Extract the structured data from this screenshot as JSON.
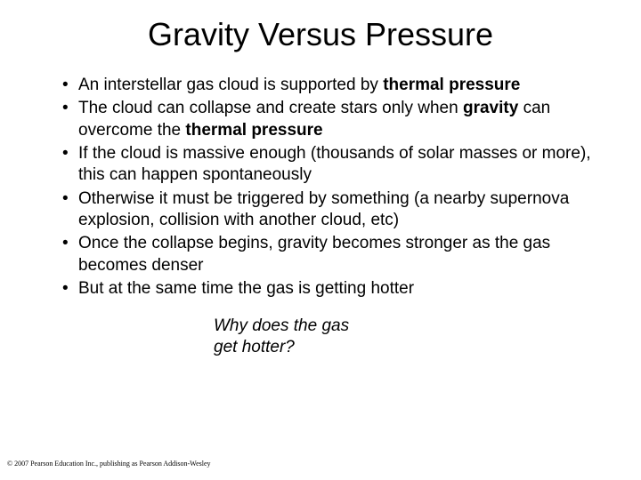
{
  "slide": {
    "title": "Gravity Versus Pressure",
    "title_fontsize": 36,
    "body_fontsize": 19,
    "background_color": "#ffffff",
    "text_color": "#000000",
    "bullets": [
      {
        "pre": "An interstellar gas cloud is supported by ",
        "bold": "thermal pressure",
        "post": ""
      },
      {
        "pre": "The cloud can collapse and create stars only when ",
        "bold": "gravity",
        "post_pre": " can overcome the ",
        "bold2": "thermal pressure",
        "post": ""
      },
      {
        "pre": "If the cloud is massive enough (thousands of solar masses or more), this can happen spontaneously",
        "bold": "",
        "post": ""
      },
      {
        "pre": "Otherwise it must be triggered by something (a nearby supernova explosion, collision with another cloud, etc)",
        "bold": "",
        "post": ""
      },
      {
        "pre": "Once the collapse begins, gravity becomes stronger as the gas becomes denser",
        "bold": "",
        "post": ""
      },
      {
        "pre": "But at the same time the gas is getting hotter",
        "bold": "",
        "post": ""
      }
    ],
    "question_line1": "Why does the gas",
    "question_line2": "get hotter?",
    "copyright": "© 2007 Pearson Education Inc., publishing as Pearson Addison-Wesley"
  }
}
